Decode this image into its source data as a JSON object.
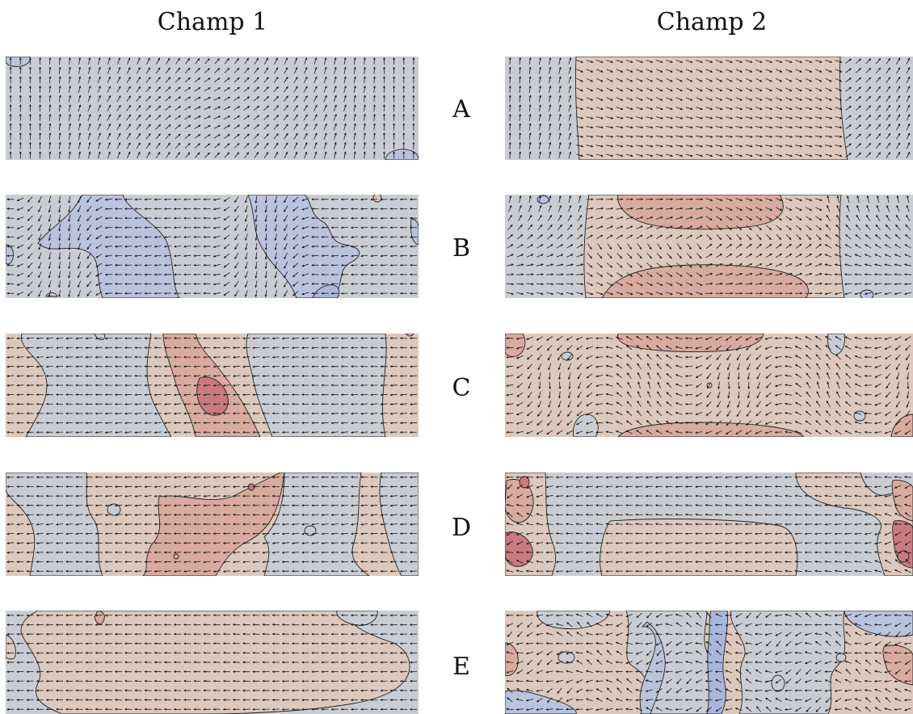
{
  "columns": [
    "Champ 1",
    "Champ 2"
  ],
  "rows": [
    "A",
    "B",
    "C",
    "D",
    "E"
  ],
  "colors": {
    "neutral": "#c9cdd3",
    "warm": "#dcc8bc",
    "warm_strong": "#d9aaa0",
    "warm_peak": "#c97a80",
    "cool": "#b9c3dd",
    "cool_strong": "#a9b6dd",
    "contour": "#222222",
    "arrow": "#1a1a1a"
  },
  "panels": [
    {
      "row": "A",
      "col": 1,
      "field": "A1"
    },
    {
      "row": "A",
      "col": 2,
      "field": "A2"
    },
    {
      "row": "B",
      "col": 1,
      "field": "B1"
    },
    {
      "row": "B",
      "col": 2,
      "field": "B2"
    },
    {
      "row": "C",
      "col": 1,
      "field": "C1"
    },
    {
      "row": "C",
      "col": 2,
      "field": "C2"
    },
    {
      "row": "D",
      "col": 1,
      "field": "D1"
    },
    {
      "row": "D",
      "col": 2,
      "field": "D2"
    },
    {
      "row": "E",
      "col": 1,
      "field": "E1"
    },
    {
      "row": "E",
      "col": 2,
      "field": "E2"
    }
  ]
}
